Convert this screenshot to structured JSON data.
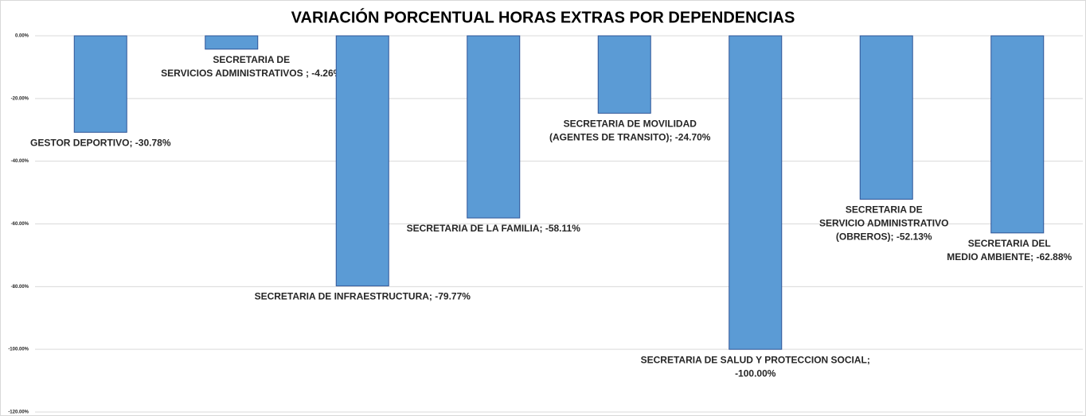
{
  "chart_data": {
    "type": "bar",
    "title": "VARIACIÓN PORCENTUAL HORAS EXTRAS POR DEPENDENCIAS",
    "values": [
      -30.78,
      -4.26,
      -79.77,
      -58.11,
      -24.7,
      -100.0,
      -52.13,
      -62.88
    ],
    "value_labels": [
      [
        "GESTOR DEPORTIVO; -30.78%"
      ],
      [
        "SECRETARIA  DE",
        "SERVICIOS ADMINISTRATIVOS  ; -4.26%"
      ],
      [
        "SECRETARIA DE INFRAESTRUCTURA; -79.77%"
      ],
      [
        "SECRETARIA DE LA FAMILIA; -58.11%"
      ],
      [
        "SECRETARIA DE MOVILIDAD",
        "(AGENTES DE TRANSITO); -24.70%"
      ],
      [
        "SECRETARIA DE SALUD Y PROTECCION SOCIAL;",
        "-100.00%"
      ],
      [
        "SECRETARIA DE",
        "SERVICIO ADMINISTRATIVO",
        "(OBREROS); -52.13%"
      ],
      [
        "SECRETARIA DEL",
        "MEDIO AMBIENTE; -62.88%"
      ]
    ],
    "color": "#5b9bd5",
    "ylim": [
      -120,
      0
    ],
    "yticks": [
      {
        "value": 0,
        "label": "0.00%"
      },
      {
        "value": -20,
        "label": "-20.00%"
      },
      {
        "value": -40,
        "label": "-40.00%"
      },
      {
        "value": -60,
        "label": "-60.00%"
      },
      {
        "value": -80,
        "label": "-80.00%"
      },
      {
        "value": -100,
        "label": "-100.00%"
      },
      {
        "value": -120,
        "label": "-120.00%"
      }
    ],
    "grid": true
  }
}
